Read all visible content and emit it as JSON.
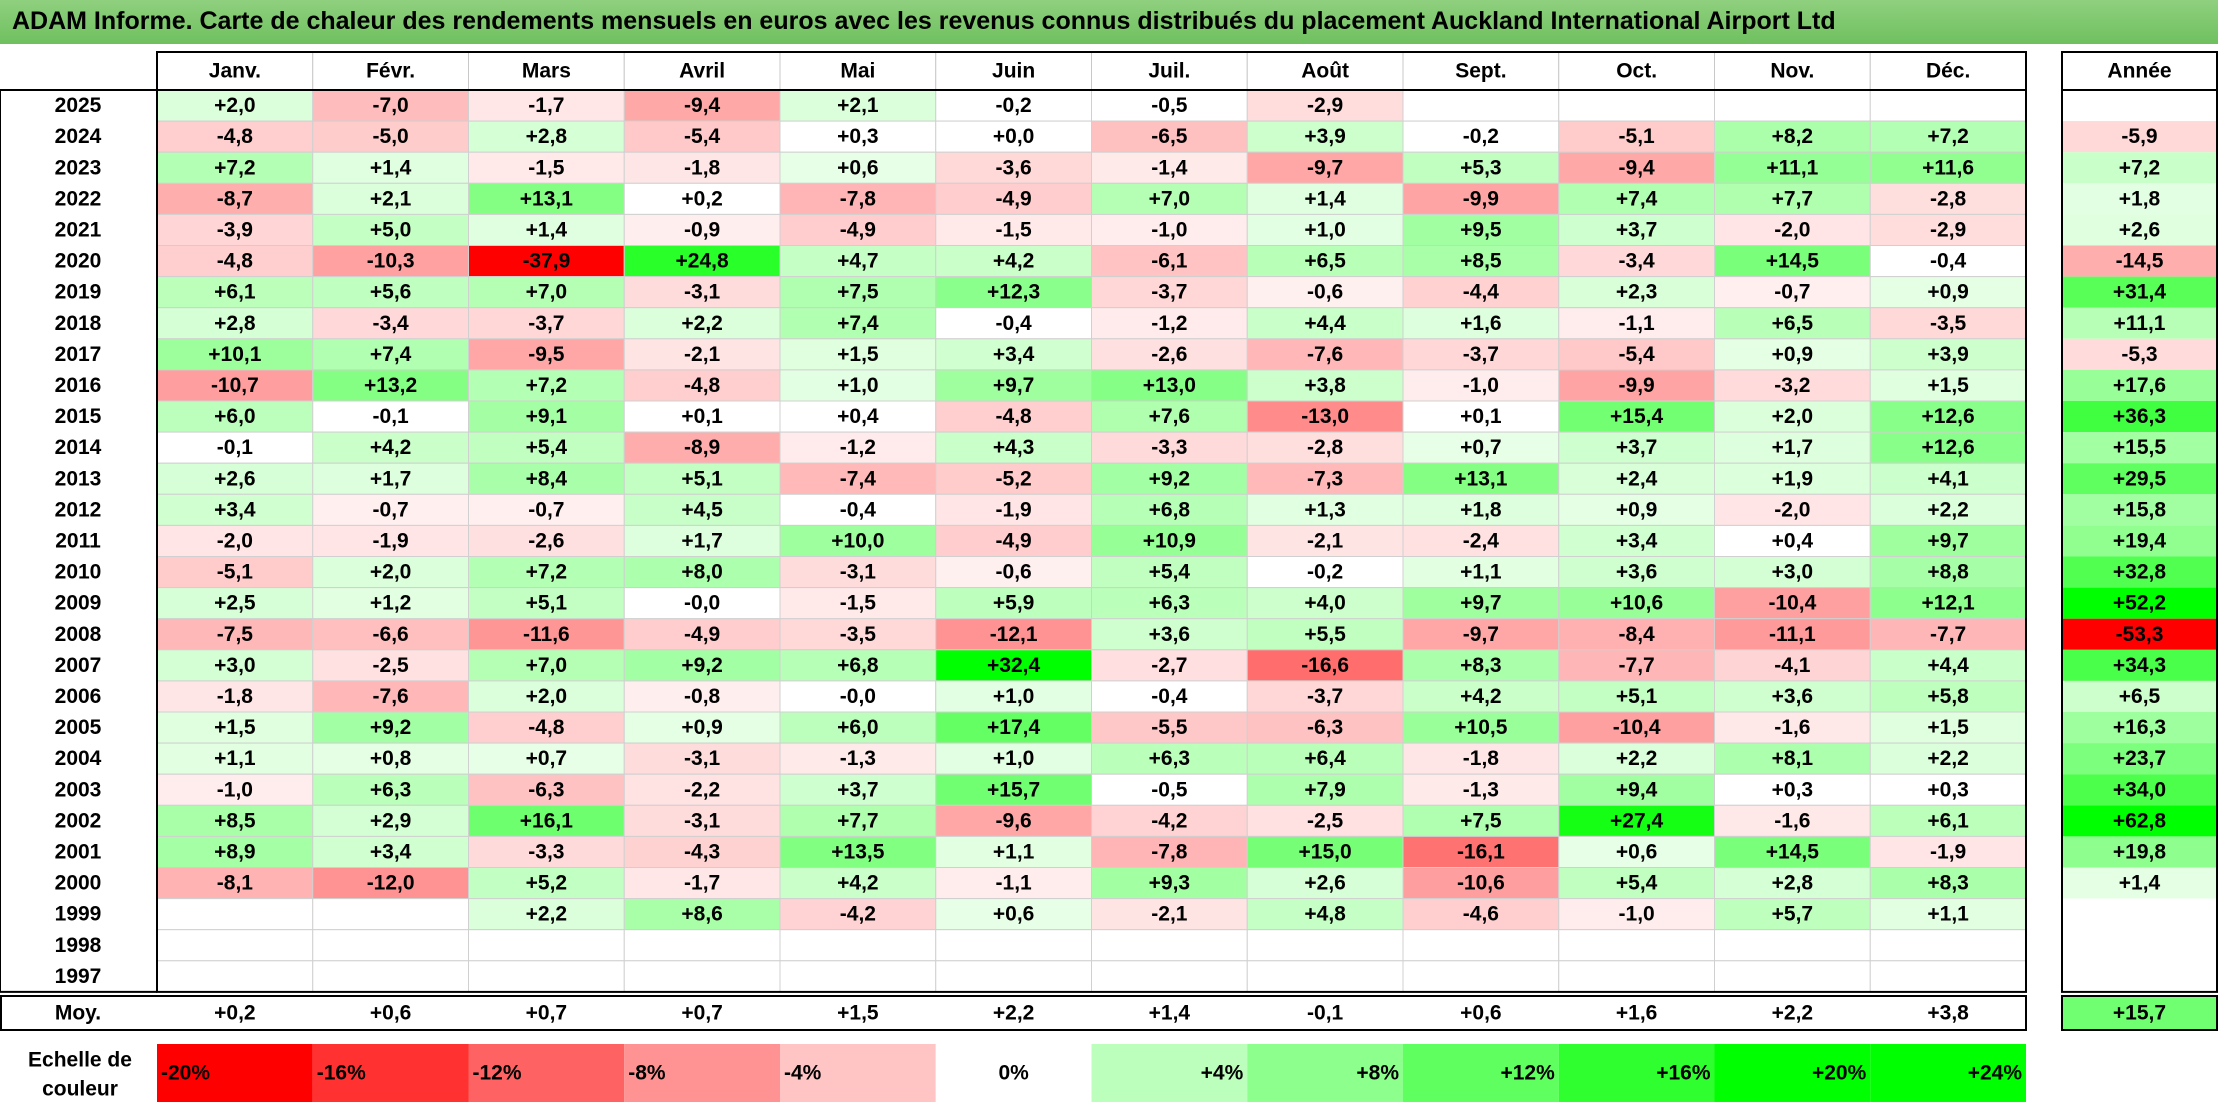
{
  "title": "ADAM Informe. Carte de chaleur des rendements mensuels en euros avec les revenus connus distribués du placement Auckland International Airport Ltd",
  "chart_data": {
    "type": "heatmap",
    "months": [
      "Janv.",
      "Févr.",
      "Mars",
      "Avril",
      "Mai",
      "Juin",
      "Juil.",
      "Août",
      "Sept.",
      "Oct.",
      "Nov.",
      "Déc."
    ],
    "year_header": "Année",
    "rows": [
      {
        "year": "2025",
        "values": [
          "+2,0",
          "-7,0",
          "-1,7",
          "-9,4",
          "+2,1",
          "-0,2",
          "-0,5",
          "-2,9",
          "",
          "",
          "",
          ""
        ],
        "annual": ""
      },
      {
        "year": "2024",
        "values": [
          "-4,8",
          "-5,0",
          "+2,8",
          "-5,4",
          "+0,3",
          "+0,0",
          "-6,5",
          "+3,9",
          "-0,2",
          "-5,1",
          "+8,2",
          "+7,2"
        ],
        "annual": "-5,9"
      },
      {
        "year": "2023",
        "values": [
          "+7,2",
          "+1,4",
          "-1,5",
          "-1,8",
          "+0,6",
          "-3,6",
          "-1,4",
          "-9,7",
          "+5,3",
          "-9,4",
          "+11,1",
          "+11,6"
        ],
        "annual": "+7,2"
      },
      {
        "year": "2022",
        "values": [
          "-8,7",
          "+2,1",
          "+13,1",
          "+0,2",
          "-7,8",
          "-4,9",
          "+7,0",
          "+1,4",
          "-9,9",
          "+7,4",
          "+7,7",
          "-2,8"
        ],
        "annual": "+1,8"
      },
      {
        "year": "2021",
        "values": [
          "-3,9",
          "+5,0",
          "+1,4",
          "-0,9",
          "-4,9",
          "-1,5",
          "-1,0",
          "+1,0",
          "+9,5",
          "+3,7",
          "-2,0",
          "-2,9"
        ],
        "annual": "+2,6"
      },
      {
        "year": "2020",
        "values": [
          "-4,8",
          "-10,3",
          "-37,9",
          "+24,8",
          "+4,7",
          "+4,2",
          "-6,1",
          "+6,5",
          "+8,5",
          "-3,4",
          "+14,5",
          "-0,4"
        ],
        "annual": "-14,5"
      },
      {
        "year": "2019",
        "values": [
          "+6,1",
          "+5,6",
          "+7,0",
          "-3,1",
          "+7,5",
          "+12,3",
          "-3,7",
          "-0,6",
          "-4,4",
          "+2,3",
          "-0,7",
          "+0,9"
        ],
        "annual": "+31,4"
      },
      {
        "year": "2018",
        "values": [
          "+2,8",
          "-3,4",
          "-3,7",
          "+2,2",
          "+7,4",
          "-0,4",
          "-1,2",
          "+4,4",
          "+1,6",
          "-1,1",
          "+6,5",
          "-3,5"
        ],
        "annual": "+11,1"
      },
      {
        "year": "2017",
        "values": [
          "+10,1",
          "+7,4",
          "-9,5",
          "-2,1",
          "+1,5",
          "+3,4",
          "-2,6",
          "-7,6",
          "-3,7",
          "-5,4",
          "+0,9",
          "+3,9"
        ],
        "annual": "-5,3"
      },
      {
        "year": "2016",
        "values": [
          "-10,7",
          "+13,2",
          "+7,2",
          "-4,8",
          "+1,0",
          "+9,7",
          "+13,0",
          "+3,8",
          "-1,0",
          "-9,9",
          "-3,2",
          "+1,5"
        ],
        "annual": "+17,6"
      },
      {
        "year": "2015",
        "values": [
          "+6,0",
          "-0,1",
          "+9,1",
          "+0,1",
          "+0,4",
          "-4,8",
          "+7,6",
          "-13,0",
          "+0,1",
          "+15,4",
          "+2,0",
          "+12,6"
        ],
        "annual": "+36,3"
      },
      {
        "year": "2014",
        "values": [
          "-0,1",
          "+4,2",
          "+5,4",
          "-8,9",
          "-1,2",
          "+4,3",
          "-3,3",
          "-2,8",
          "+0,7",
          "+3,7",
          "+1,7",
          "+12,6"
        ],
        "annual": "+15,5"
      },
      {
        "year": "2013",
        "values": [
          "+2,6",
          "+1,7",
          "+8,4",
          "+5,1",
          "-7,4",
          "-5,2",
          "+9,2",
          "-7,3",
          "+13,1",
          "+2,4",
          "+1,9",
          "+4,1"
        ],
        "annual": "+29,5"
      },
      {
        "year": "2012",
        "values": [
          "+3,4",
          "-0,7",
          "-0,7",
          "+4,5",
          "-0,4",
          "-1,9",
          "+6,8",
          "+1,3",
          "+1,8",
          "+0,9",
          "-2,0",
          "+2,2"
        ],
        "annual": "+15,8"
      },
      {
        "year": "2011",
        "values": [
          "-2,0",
          "-1,9",
          "-2,6",
          "+1,7",
          "+10,0",
          "-4,9",
          "+10,9",
          "-2,1",
          "-2,4",
          "+3,4",
          "+0,4",
          "+9,7"
        ],
        "annual": "+19,4"
      },
      {
        "year": "2010",
        "values": [
          "-5,1",
          "+2,0",
          "+7,2",
          "+8,0",
          "-3,1",
          "-0,6",
          "+5,4",
          "-0,2",
          "+1,1",
          "+3,6",
          "+3,0",
          "+8,8"
        ],
        "annual": "+32,8"
      },
      {
        "year": "2009",
        "values": [
          "+2,5",
          "+1,2",
          "+5,1",
          "-0,0",
          "-1,5",
          "+5,9",
          "+6,3",
          "+4,0",
          "+9,7",
          "+10,6",
          "-10,4",
          "+12,1"
        ],
        "annual": "+52,2"
      },
      {
        "year": "2008",
        "values": [
          "-7,5",
          "-6,6",
          "-11,6",
          "-4,9",
          "-3,5",
          "-12,1",
          "+3,6",
          "+5,5",
          "-9,7",
          "-8,4",
          "-11,1",
          "-7,7"
        ],
        "annual": "-53,3"
      },
      {
        "year": "2007",
        "values": [
          "+3,0",
          "-2,5",
          "+7,0",
          "+9,2",
          "+6,8",
          "+32,4",
          "-2,7",
          "-16,6",
          "+8,3",
          "-7,7",
          "-4,1",
          "+4,4"
        ],
        "annual": "+34,3"
      },
      {
        "year": "2006",
        "values": [
          "-1,8",
          "-7,6",
          "+2,0",
          "-0,8",
          "-0,0",
          "+1,0",
          "-0,4",
          "-3,7",
          "+4,2",
          "+5,1",
          "+3,6",
          "+5,8"
        ],
        "annual": "+6,5"
      },
      {
        "year": "2005",
        "values": [
          "+1,5",
          "+9,2",
          "-4,8",
          "+0,9",
          "+6,0",
          "+17,4",
          "-5,5",
          "-6,3",
          "+10,5",
          "-10,4",
          "-1,6",
          "+1,5"
        ],
        "annual": "+16,3"
      },
      {
        "year": "2004",
        "values": [
          "+1,1",
          "+0,8",
          "+0,7",
          "-3,1",
          "-1,3",
          "+1,0",
          "+6,3",
          "+6,4",
          "-1,8",
          "+2,2",
          "+8,1",
          "+2,2"
        ],
        "annual": "+23,7"
      },
      {
        "year": "2003",
        "values": [
          "-1,0",
          "+6,3",
          "-6,3",
          "-2,2",
          "+3,7",
          "+15,7",
          "-0,5",
          "+7,9",
          "-1,3",
          "+9,4",
          "+0,3",
          "+0,3"
        ],
        "annual": "+34,0"
      },
      {
        "year": "2002",
        "values": [
          "+8,5",
          "+2,9",
          "+16,1",
          "-3,1",
          "+7,7",
          "-9,6",
          "-4,2",
          "-2,5",
          "+7,5",
          "+27,4",
          "-1,6",
          "+6,1"
        ],
        "annual": "+62,8"
      },
      {
        "year": "2001",
        "values": [
          "+8,9",
          "+3,4",
          "-3,3",
          "-4,3",
          "+13,5",
          "+1,1",
          "-7,8",
          "+15,0",
          "-16,1",
          "+0,6",
          "+14,5",
          "-1,9"
        ],
        "annual": "+19,8"
      },
      {
        "year": "2000",
        "values": [
          "-8,1",
          "-12,0",
          "+5,2",
          "-1,7",
          "+4,2",
          "-1,1",
          "+9,3",
          "+2,6",
          "-10,6",
          "+5,4",
          "+2,8",
          "+8,3"
        ],
        "annual": "+1,4"
      },
      {
        "year": "1999",
        "values": [
          "",
          "",
          "+2,2",
          "+8,6",
          "-4,2",
          "+0,6",
          "-2,1",
          "+4,8",
          "-4,6",
          "-1,0",
          "+5,7",
          "+1,1"
        ],
        "annual": ""
      },
      {
        "year": "1998",
        "values": [
          "",
          "",
          "",
          "",
          "",
          "",
          "",
          "",
          "",
          "",
          "",
          ""
        ],
        "annual": ""
      },
      {
        "year": "1997",
        "values": [
          "",
          "",
          "",
          "",
          "",
          "",
          "",
          "",
          "",
          "",
          "",
          ""
        ],
        "annual": ""
      }
    ],
    "average": {
      "label": "Moy.",
      "values": [
        "+0,2",
        "+0,6",
        "+0,7",
        "+0,7",
        "+1,5",
        "+2,2",
        "+1,4",
        "-0,1",
        "+0,6",
        "+1,6",
        "+2,2",
        "+3,8"
      ],
      "annual": "+15,7"
    },
    "scale": {
      "label_line1": "Echelle de",
      "label_line2": "couleur",
      "items": [
        "-20%",
        "-16%",
        "-12%",
        "-8%",
        "-4%",
        "0%",
        "+4%",
        "+8%",
        "+12%",
        "+16%",
        "+20%",
        "+24%"
      ],
      "values": [
        -20,
        -16,
        -12,
        -8,
        -4,
        0,
        4,
        8,
        12,
        16,
        20,
        24
      ]
    },
    "colors": {
      "negative_max": "#ff0000",
      "positive_max": "#00ff00",
      "neutral": "#ffffff",
      "title_bar": "#7cc86a"
    }
  }
}
